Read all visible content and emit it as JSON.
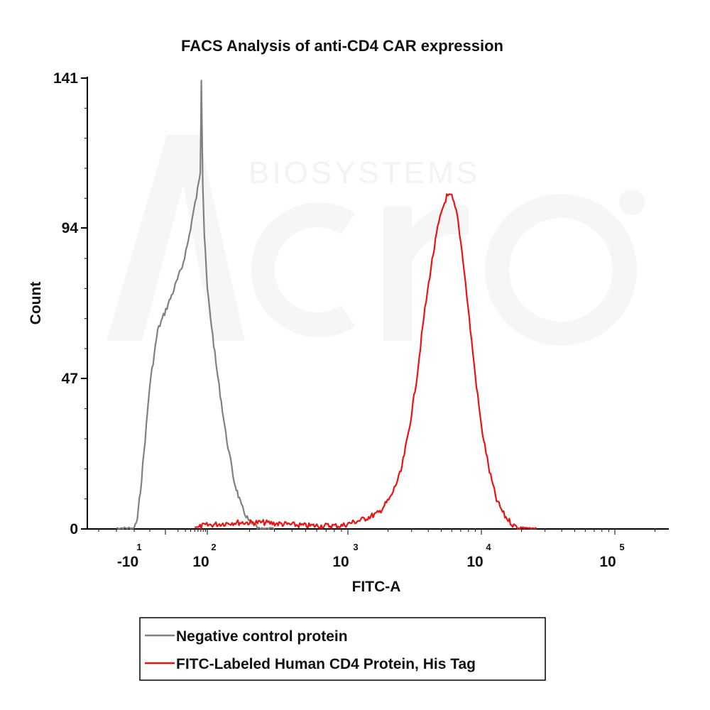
{
  "chart_data": {
    "type": "line",
    "title": "FACS Analysis of anti-CD4 CAR expression",
    "xlabel": "FITC-A",
    "ylabel": "Count",
    "y_ticks": [
      "0",
      "47",
      "94",
      "141"
    ],
    "ylim": [
      0,
      141
    ],
    "x_scale": "biexponential (log)",
    "x_ticks": [
      {
        "base": "-10",
        "exp": "1",
        "value": -10
      },
      {
        "base": "10",
        "exp": "2",
        "value": 100
      },
      {
        "base": "10",
        "exp": "3",
        "value": 1000
      },
      {
        "base": "10",
        "exp": "4",
        "value": 10000
      },
      {
        "base": "10",
        "exp": "5",
        "value": 100000
      }
    ],
    "xlim": [
      -30,
      250000
    ],
    "grid": false,
    "legend_position": "bottom",
    "series": [
      {
        "name": "Negative control protein",
        "color": "#808080",
        "points": [
          [
            -20,
            0
          ],
          [
            -10,
            0
          ],
          [
            -8,
            3
          ],
          [
            -6,
            12
          ],
          [
            -3,
            28
          ],
          [
            0,
            45
          ],
          [
            5,
            62
          ],
          [
            15,
            74
          ],
          [
            25,
            82
          ],
          [
            35,
            90
          ],
          [
            45,
            98
          ],
          [
            55,
            104
          ],
          [
            62,
            108
          ],
          [
            68,
            112
          ],
          [
            72,
            141
          ],
          [
            78,
            108
          ],
          [
            85,
            92
          ],
          [
            100,
            75
          ],
          [
            115,
            52
          ],
          [
            135,
            30
          ],
          [
            155,
            15
          ],
          [
            175,
            7
          ],
          [
            200,
            2
          ],
          [
            240,
            0
          ],
          [
            300,
            0
          ]
        ]
      },
      {
        "name": "FITC-Labeled Human CD4 Protein, His Tag",
        "color": "#ee1111",
        "points": [
          [
            50,
            0
          ],
          [
            80,
            1
          ],
          [
            150,
            2
          ],
          [
            250,
            2
          ],
          [
            500,
            1
          ],
          [
            900,
            1
          ],
          [
            1300,
            3
          ],
          [
            1700,
            5
          ],
          [
            2100,
            10
          ],
          [
            2500,
            18
          ],
          [
            2900,
            32
          ],
          [
            3300,
            48
          ],
          [
            3700,
            66
          ],
          [
            4200,
            82
          ],
          [
            4700,
            94
          ],
          [
            5100,
            100
          ],
          [
            5500,
            104
          ],
          [
            6000,
            104
          ],
          [
            6600,
            98
          ],
          [
            7300,
            84
          ],
          [
            8100,
            66
          ],
          [
            9000,
            48
          ],
          [
            10000,
            32
          ],
          [
            11500,
            18
          ],
          [
            13000,
            9
          ],
          [
            15000,
            4
          ],
          [
            17500,
            1
          ],
          [
            21000,
            0
          ],
          [
            26000,
            0
          ]
        ]
      }
    ]
  },
  "watermark": {
    "brand": "Acro",
    "subtitle": "BIOSYSTEMS"
  }
}
